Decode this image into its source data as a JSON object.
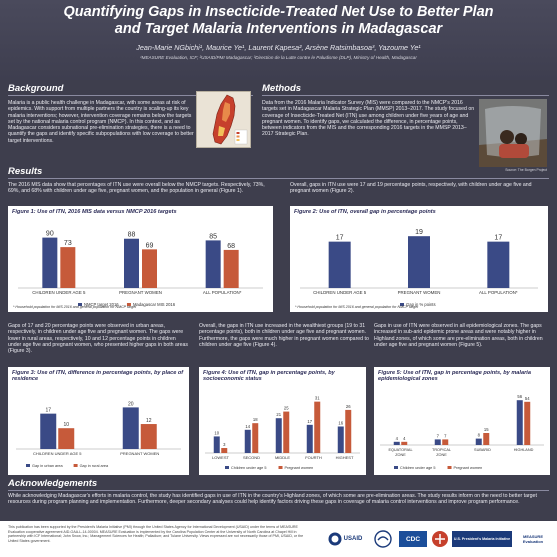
{
  "header": {
    "title_line1": "Quantifying Gaps in Insecticide-Treated Net Use to Better Plan",
    "title_line2": "and Target Malaria Interventions in Madagascar",
    "authors": "Jean-Marie NGbichi¹, Maurice Ye¹, Laurent Kapesa², Arsène Ratsimbasoa³, Yazoume Ye¹",
    "affiliations": "¹MEASURE Evaluation, ICF; ²USAID/PMI Madagascar; ³Direction de la Lutte contre le Paludisme (DLP), Ministry of Health, Madagascar"
  },
  "background": {
    "heading": "Background",
    "text": "Malaria is a public health challenge in Madagascar, with some areas at risk of epidemics. With support from multiple partners the country is scaling-up its key malaria interventions; however, intervention coverage remains below the targets set by the national malaria control program (NMCP). In this context, and as Madagascar considers subnational pre-elimination strategies, there is a need to quantify the gaps and identify specific subpopulations with low coverage to better target interventions."
  },
  "methods": {
    "heading": "Methods",
    "text": "Data from the 2016 Malaria Indicator Survey (MIS) were compared to the NMCP's 2016 targets set in Madagascar Malaria Strategic Plan (MMSP) 2013–2017. The study focused on coverage of Insecticide-Treated Net (ITN) use among children under five years of age and pregnant women. To identify gaps, we calculated the difference, in percentage points, between indicators from the MIS and the corresponding 2016 targets in the MMSP 2013–2017 Strategic Plan.",
    "photo_caption": "Source: The Borgen Project"
  },
  "results": {
    "heading": "Results",
    "para1": "The 2016 MIS data show that percentages of ITN use were overall below the NMCP targets. Respectively, 73%, 69%, and 68% with children under age five, pregnant women, and the population in general (Figure 1).",
    "para2": "Overall, gaps in ITN use were 17 and 19 percentage points, respectively, with children under age five and pregnant women (Figure 2).",
    "para3": "Gaps of 17 and 20 percentage points were observed in urban areas, respectively, in children under age five and pregnant women. The gaps were lower in rural areas, respectively, 10 and 12 percentage points in children under age five and pregnant women, who presented higher gaps in both areas (Figure 3).",
    "para4": "Overall, the gaps in ITN use increased in the wealthiest groups (19 to 31 percentage points), both in children under age five and pregnant women. Furthermore, the gaps were much higher in pregnant women compared to children under age five (Figure 4).",
    "para5": "Gaps in use of ITN were observed in all epidemiological zones. The gaps increased in sub-arid epidemic prone areas and were notably higher in Highland zones, of which some are pre-elimination areas, both in children under age five and pregnant women (Figure 5)."
  },
  "figures": {
    "fig1": {
      "title": "Figure 1: Use of ITN, 2016 MIS data versus NMCP 2016 targets",
      "note": "* Household population for MIS 2016 and general population for NMCP target"
    },
    "fig2": {
      "title": "Figure 2: Use of ITN, overall gap in percentage points",
      "note": "* Household population for MIS 2016 and general population for NMCP target"
    },
    "fig3": {
      "title": "Figure 3: Use of ITN, difference in percentage points, by place of residence"
    },
    "fig4": {
      "title": "Figure 4: Use of ITN, gap in percentage points, by socioeconomic status"
    },
    "fig5": {
      "title": "Figure 5: Use of ITN, gap in percentage points, by malaria epidemiological zones"
    }
  },
  "chart_data": [
    {
      "type": "bar",
      "categories": [
        "CHILDREN UNDER AGE 5",
        "PREGNANT WOMEN",
        "ALL POPULATION*"
      ],
      "series": [
        {
          "name": "NMCP target 2016",
          "values": [
            90,
            88,
            85
          ],
          "color": "#3a4a86"
        },
        {
          "name": "Madagascar MIS 2016",
          "values": [
            73,
            69,
            68
          ],
          "color": "#c65a3a"
        }
      ],
      "ylim": [
        0,
        100
      ]
    },
    {
      "type": "bar",
      "categories": [
        "CHILDREN UNDER AGE 5",
        "PREGNANT WOMEN",
        "ALL POPULATION*"
      ],
      "series": [
        {
          "name": "Gap in % points",
          "values": [
            17,
            19,
            17
          ],
          "color": "#3a4a86"
        }
      ],
      "ylim": [
        0,
        22
      ]
    },
    {
      "type": "bar",
      "categories": [
        "CHILDREN UNDER AGE 5",
        "PREGNANT WOMEN"
      ],
      "series": [
        {
          "name": "Gap in urban area",
          "values": [
            17,
            20
          ],
          "color": "#3a4a86"
        },
        {
          "name": "Gap in rural area",
          "values": [
            10,
            12
          ],
          "color": "#c65a3a"
        }
      ],
      "ylim": [
        0,
        25
      ]
    },
    {
      "type": "bar",
      "categories": [
        "LOWEST",
        "SECOND",
        "MIDDLE",
        "FOURTH",
        "HIGHEST"
      ],
      "series": [
        {
          "name": "Children under age 5",
          "values": [
            10,
            14,
            21,
            17,
            16
          ],
          "color": "#3a4a86"
        },
        {
          "name": "Pregnant women",
          "values": [
            3,
            18,
            25,
            31,
            26
          ],
          "color": "#c65a3a"
        }
      ],
      "ylim": [
        0,
        35
      ]
    },
    {
      "type": "bar",
      "categories": [
        "EQUATORIAL ZONE",
        "TROPICAL ZONE",
        "SUBARID",
        "HIGHLAND"
      ],
      "series": [
        {
          "name": "Children under age 5",
          "values": [
            4,
            7,
            8,
            56
          ],
          "color": "#3a4a86"
        },
        {
          "name": "Pregnant women",
          "values": [
            4,
            7,
            15,
            54
          ],
          "color": "#c65a3a"
        }
      ],
      "ylim": [
        0,
        60
      ]
    }
  ],
  "acknowledgements": {
    "heading": "Acknowledgements",
    "text": "While acknowledging Madagascar's efforts in malaria control, the study has identified gaps in use of ITN in the country's Highland zones, of which some are pre-elimination areas. The study results inform on the need to better target resources during program planning and implementation. Furthermore, deeper secondary analyses could help identify factors driving these gaps in coverage of malaria control interventions and improve program performance."
  },
  "footer": {
    "disclaimer": "This publication has been supported by the President's Malaria Initiative (PMI) through the United States Agency for International Development (USAID) under the terms of MEASURE Evaluation cooperative agreement AID-OAA-L-14-00004. MEASURE Evaluation is implemented by the Carolina Population Center at the University of North Carolina at Chapel Hill in partnership with ICF International; John Snow, Inc.; Management Sciences for Health; Palladium; and Tulane University. Views expressed are not necessarily those of PMI, USAID, or the United States government.",
    "logo_usaid": "USAID",
    "logo_cdc": "CDC",
    "logo_pmi": "U.S. President's Malaria Initiative",
    "logo_measure": "MEASURE Evaluation"
  },
  "colors": {
    "navy": "#3a4a86",
    "rust": "#c65a3a",
    "background": "#3e3e4d"
  }
}
